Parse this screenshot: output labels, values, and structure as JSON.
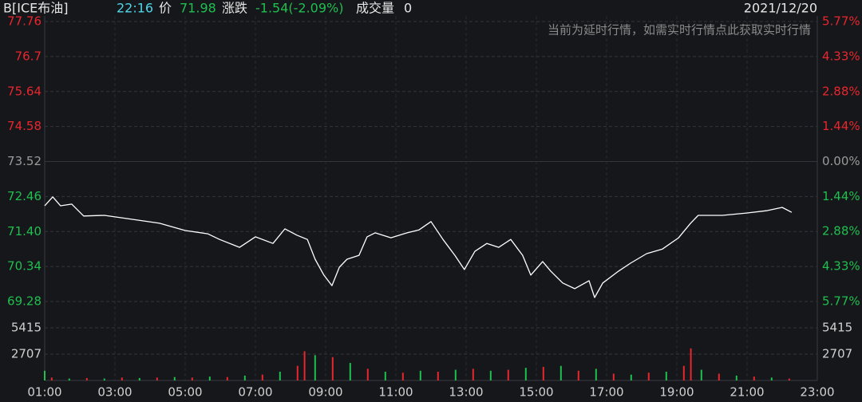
{
  "header": {
    "symbol": "B[ICE布油]",
    "time": "22:16",
    "price_label": "价",
    "price": "71.98",
    "change_label": "涨跌",
    "change": "-1.54(-2.09%)",
    "volume_label": "成交量",
    "volume": "0",
    "date": "2021/12/20",
    "notice": "当前为延时行情，如需实时行情点此获取实时行情"
  },
  "chart_data": {
    "type": "line",
    "up_color": "#e8262d",
    "down_color": "#1fbf4f",
    "flat_color": "#9a9a9a",
    "line_color": "#ffffff",
    "grid": true,
    "xlim": [
      1,
      23
    ],
    "xticks": [
      {
        "value": 1,
        "label": "01:00"
      },
      {
        "value": 3,
        "label": "03:00"
      },
      {
        "value": 5,
        "label": "05:00"
      },
      {
        "value": 7,
        "label": "07:00"
      },
      {
        "value": 9,
        "label": "09:00"
      },
      {
        "value": 11,
        "label": "11:00"
      },
      {
        "value": 13,
        "label": "13:00"
      },
      {
        "value": 15,
        "label": "15:00"
      },
      {
        "value": 17,
        "label": "17:00"
      },
      {
        "value": 19,
        "label": "19:00"
      },
      {
        "value": 21,
        "label": "21:00"
      },
      {
        "value": 23,
        "label": "23:00"
      }
    ],
    "ylim": [
      69.28,
      77.76
    ],
    "yticks": [
      77.76,
      76.7,
      75.64,
      74.58,
      73.52,
      72.46,
      {
        "value": 71.4,
        "label": "71.40"
      },
      70.34,
      69.28
    ],
    "y2lim": [
      -5.77,
      5.77
    ],
    "y2ticks": [
      {
        "value": 5.77,
        "label": "5.77%"
      },
      {
        "value": 4.33,
        "label": "4.33%"
      },
      {
        "value": 2.88,
        "label": "2.88%"
      },
      {
        "value": 1.44,
        "label": "1.44%"
      },
      {
        "value": 0,
        "label": "0.00%"
      },
      {
        "value": -1.44,
        "label": "1.44%"
      },
      {
        "value": -2.88,
        "label": "2.88%"
      },
      {
        "value": -4.33,
        "label": "4.33%"
      },
      {
        "value": -5.77,
        "label": "5.77%"
      }
    ],
    "x": [
      1.0,
      1.23,
      1.45,
      1.77,
      2.11,
      2.7,
      3.36,
      4.27,
      5.0,
      5.64,
      5.98,
      6.55,
      7.0,
      7.5,
      7.84,
      8.18,
      8.48,
      8.7,
      8.95,
      9.18,
      9.39,
      9.61,
      9.95,
      10.18,
      10.41,
      10.86,
      11.32,
      11.66,
      12.0,
      12.34,
      12.68,
      12.95,
      13.25,
      13.59,
      13.93,
      14.27,
      14.61,
      14.84,
      15.18,
      15.41,
      15.75,
      16.09,
      16.5,
      16.66,
      16.89,
      17.34,
      17.68,
      18.14,
      18.59,
      19.05,
      19.39,
      19.61,
      20.3,
      20.98,
      21.55,
      22.0,
      22.27
    ],
    "values": [
      72.18,
      72.45,
      72.18,
      72.23,
      71.87,
      71.89,
      71.79,
      71.65,
      71.43,
      71.33,
      71.16,
      70.92,
      71.24,
      71.04,
      71.48,
      71.29,
      71.16,
      70.56,
      70.08,
      69.76,
      70.32,
      70.56,
      70.68,
      71.24,
      71.36,
      71.21,
      71.36,
      71.45,
      71.7,
      71.16,
      70.68,
      70.25,
      70.8,
      71.04,
      70.92,
      71.16,
      70.68,
      70.08,
      70.49,
      70.2,
      69.84,
      69.67,
      69.91,
      69.4,
      69.84,
      70.2,
      70.44,
      70.73,
      70.87,
      71.21,
      71.65,
      71.89,
      71.89,
      71.96,
      72.03,
      72.13,
      71.98
    ],
    "volume": {
      "ylim": [
        0,
        8122
      ],
      "yticks": [
        2707,
        5415
      ],
      "x": [
        1.0,
        1.2,
        1.7,
        2.2,
        2.7,
        3.2,
        3.7,
        4.2,
        4.7,
        5.2,
        5.7,
        6.2,
        6.7,
        7.2,
        7.7,
        8.2,
        8.4,
        8.7,
        9.2,
        9.7,
        10.2,
        10.7,
        11.2,
        11.7,
        12.2,
        12.7,
        13.2,
        13.7,
        14.2,
        14.7,
        15.2,
        15.7,
        16.2,
        16.7,
        17.2,
        17.7,
        18.2,
        18.7,
        19.2,
        19.4,
        19.7,
        20.2,
        20.7,
        21.2,
        21.7,
        22.2
      ],
      "values": [
        1000,
        300,
        200,
        250,
        200,
        300,
        250,
        300,
        350,
        300,
        400,
        350,
        500,
        600,
        900,
        1500,
        3000,
        2600,
        2400,
        1800,
        1200,
        900,
        800,
        1000,
        900,
        1100,
        1200,
        1000,
        1100,
        1300,
        1400,
        1500,
        1000,
        1200,
        700,
        600,
        800,
        900,
        1500,
        3300,
        1100,
        700,
        500,
        400,
        300,
        200
      ],
      "colors": [
        "#1fbf4f",
        "#e8262d",
        "#1fbf4f",
        "#e8262d",
        "#1fbf4f",
        "#e8262d",
        "#1fbf4f",
        "#e8262d",
        "#1fbf4f",
        "#e8262d",
        "#1fbf4f",
        "#e8262d",
        "#1fbf4f",
        "#e8262d",
        "#1fbf4f",
        "#e8262d",
        "#e8262d",
        "#1fbf4f",
        "#e8262d",
        "#1fbf4f",
        "#e8262d",
        "#1fbf4f",
        "#e8262d",
        "#1fbf4f",
        "#e8262d",
        "#1fbf4f",
        "#e8262d",
        "#1fbf4f",
        "#e8262d",
        "#1fbf4f",
        "#e8262d",
        "#1fbf4f",
        "#e8262d",
        "#1fbf4f",
        "#e8262d",
        "#1fbf4f",
        "#e8262d",
        "#1fbf4f",
        "#e8262d",
        "#e8262d",
        "#1fbf4f",
        "#e8262d",
        "#1fbf4f",
        "#e8262d",
        "#1fbf4f",
        "#e8262d"
      ]
    }
  }
}
